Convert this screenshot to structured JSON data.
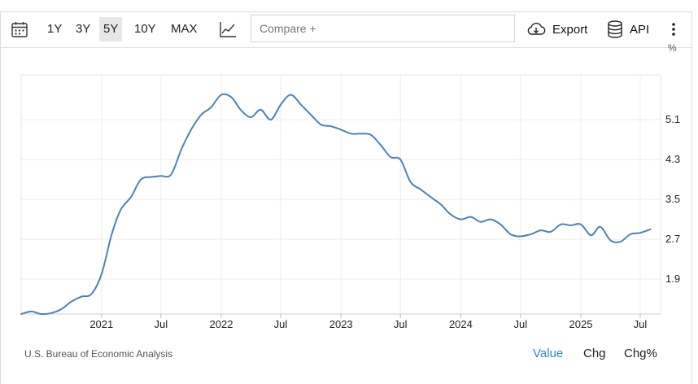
{
  "toolbar": {
    "calendar_icon": "calendar-icon",
    "ranges": [
      "1Y",
      "3Y",
      "5Y",
      "10Y",
      "MAX"
    ],
    "active_range": "5Y",
    "chart_type_icon": "line-chart-icon",
    "compare_placeholder": "Compare +",
    "export_label": "Export",
    "export_icon": "cloud-download-icon",
    "api_label": "API",
    "api_icon": "database-icon",
    "more_icon": "more-vertical-icon"
  },
  "chart_data": {
    "type": "line",
    "unit": "%",
    "ylim": [
      1.2,
      6.0
    ],
    "yticks": [
      1.9,
      2.7,
      3.5,
      4.3,
      5.1
    ],
    "ytick_labels": [
      "1.9",
      "2.7",
      "3.5",
      "4.3",
      "5.1"
    ],
    "xticks": [
      "2021-01-01",
      "2021-07-01",
      "2022-01-01",
      "2022-07-01",
      "2023-01-01",
      "2023-07-01",
      "2024-01-01",
      "2024-07-01",
      "2025-01-01",
      "2025-07-01"
    ],
    "xtick_labels": [
      "2021",
      "Jul",
      "2022",
      "Jul",
      "2023",
      "Jul",
      "2024",
      "Jul",
      "2025",
      "Jul"
    ],
    "xlim": [
      "2020-05-01",
      "2025-09-01"
    ],
    "grid": true,
    "line_color": "#4d82b8",
    "series": [
      {
        "x": [
          "2020-05-01",
          "2020-06-01",
          "2020-07-01",
          "2020-08-01",
          "2020-09-01",
          "2020-10-01",
          "2020-11-01",
          "2020-12-01",
          "2021-01-01",
          "2021-02-01",
          "2021-03-01",
          "2021-04-01",
          "2021-05-01",
          "2021-06-01",
          "2021-07-01",
          "2021-08-01",
          "2021-09-01",
          "2021-10-01",
          "2021-11-01",
          "2021-12-01",
          "2022-01-01",
          "2022-02-01",
          "2022-03-01",
          "2022-04-01",
          "2022-05-01",
          "2022-06-01",
          "2022-07-01",
          "2022-08-01",
          "2022-09-01",
          "2022-10-01",
          "2022-11-01",
          "2022-12-01",
          "2023-01-01",
          "2023-02-01",
          "2023-03-01",
          "2023-04-01",
          "2023-05-01",
          "2023-06-01",
          "2023-07-01",
          "2023-08-01",
          "2023-09-01",
          "2023-10-01",
          "2023-11-01",
          "2023-12-01",
          "2024-01-01",
          "2024-02-01",
          "2024-03-01",
          "2024-04-01",
          "2024-05-01",
          "2024-06-01",
          "2024-07-01",
          "2024-08-01",
          "2024-09-01",
          "2024-10-01",
          "2024-11-01",
          "2024-12-01",
          "2025-01-01",
          "2025-02-01",
          "2025-03-01",
          "2025-04-01",
          "2025-05-01",
          "2025-06-01",
          "2025-07-01",
          "2025-08-01"
        ],
        "y": [
          1.2,
          1.25,
          1.2,
          1.22,
          1.3,
          1.45,
          1.55,
          1.6,
          2.0,
          2.8,
          3.3,
          3.55,
          3.9,
          3.95,
          3.97,
          4.0,
          4.5,
          4.9,
          5.2,
          5.35,
          5.6,
          5.55,
          5.3,
          5.15,
          5.3,
          5.1,
          5.4,
          5.6,
          5.4,
          5.2,
          5.0,
          4.97,
          4.9,
          4.82,
          4.82,
          4.8,
          4.6,
          4.35,
          4.3,
          3.85,
          3.7,
          3.55,
          3.4,
          3.2,
          3.1,
          3.15,
          3.05,
          3.1,
          3.0,
          2.8,
          2.76,
          2.8,
          2.88,
          2.85,
          3.0,
          2.98,
          3.0,
          2.78,
          2.95,
          2.68,
          2.65,
          2.8,
          2.83,
          2.9
        ]
      }
    ]
  },
  "footer": {
    "source": "U.S. Bureau of Economic Analysis",
    "modes": [
      "Value",
      "Chg",
      "Chg%"
    ],
    "active_mode": "Value"
  }
}
